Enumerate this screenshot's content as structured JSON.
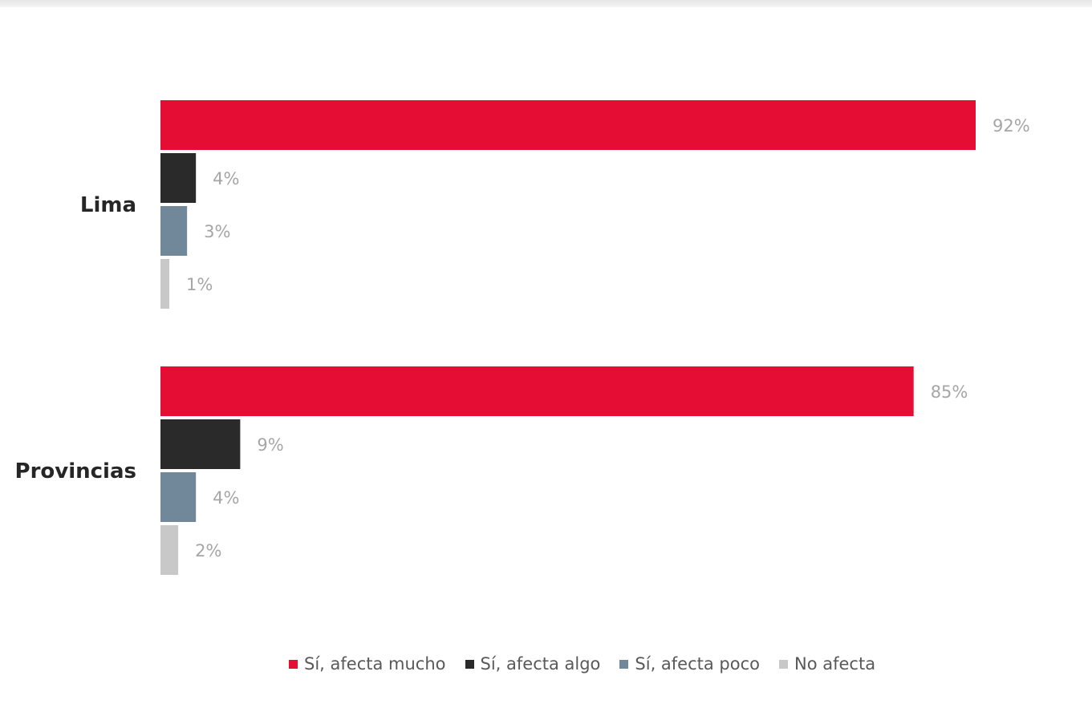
{
  "chart_data": {
    "type": "bar",
    "orientation": "horizontal",
    "categories": [
      "Lima",
      "Provincias"
    ],
    "series": [
      {
        "name": "Sí, afecta mucho",
        "color": "#e60d34",
        "values": [
          92,
          85
        ],
        "labels": [
          "92%",
          "85%"
        ]
      },
      {
        "name": "Sí, afecta algo",
        "color": "#2a2a2a",
        "values": [
          4,
          9
        ],
        "labels": [
          "4%",
          "9%"
        ]
      },
      {
        "name": "Sí, afecta poco",
        "color": "#71879a",
        "values": [
          3,
          4
        ],
        "labels": [
          "3%",
          "4%"
        ]
      },
      {
        "name": "No afecta",
        "color": "#c8c8c8",
        "values": [
          1,
          2
        ],
        "labels": [
          "1%",
          "2%"
        ]
      }
    ],
    "unit": "%",
    "xlim": [
      0,
      100
    ],
    "grid": false,
    "legend_position": "bottom"
  }
}
